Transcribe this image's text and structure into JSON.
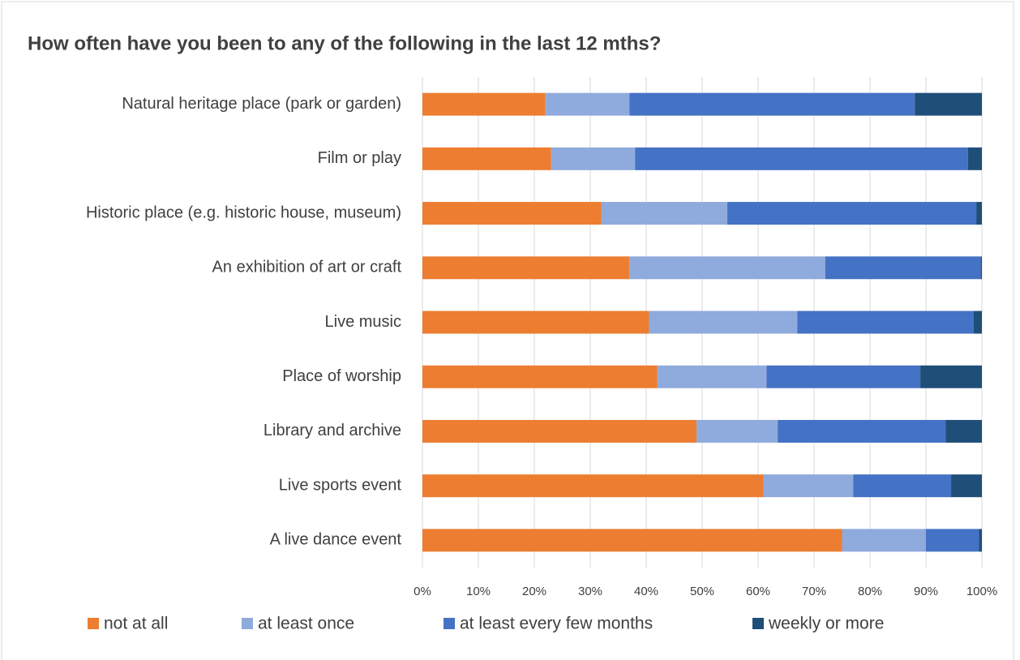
{
  "chart_data": {
    "type": "stacked-bar-horizontal",
    "title": "How often have you been to any of the following in the last 12 mths?",
    "categories": [
      "Natural heritage place (park or garden)",
      "Film or play",
      "Historic place (e.g. historic house, museum)",
      "An exhibition of art or craft",
      "Live music",
      "Place of worship",
      "Library and archive",
      "Live sports event",
      "A live dance event"
    ],
    "series": [
      {
        "name": "not at all",
        "color": "#ed7d31",
        "values": [
          22,
          23,
          32,
          37,
          40.5,
          42,
          49,
          61,
          75
        ]
      },
      {
        "name": "at least once",
        "color": "#8faadc",
        "values": [
          15,
          15,
          22.5,
          35,
          26.5,
          19.5,
          14.5,
          16,
          15
        ]
      },
      {
        "name": "at least every few months",
        "color": "#4472c4",
        "values": [
          51,
          59.5,
          44.5,
          27.8,
          31.5,
          27.5,
          30,
          17.5,
          9.5
        ]
      },
      {
        "name": "weekly or more",
        "color": "#1f4e79",
        "values": [
          12,
          2.5,
          1,
          0.2,
          1.5,
          11,
          6.5,
          5.5,
          0.5
        ]
      }
    ],
    "xlim": [
      0,
      100
    ],
    "xticks": [
      {
        "value": 0,
        "label": "0%"
      },
      {
        "value": 10,
        "label": "10%"
      },
      {
        "value": 20,
        "label": "20%"
      },
      {
        "value": 30,
        "label": "30%"
      },
      {
        "value": 40,
        "label": "40%"
      },
      {
        "value": 50,
        "label": "50%"
      },
      {
        "value": 60,
        "label": "60%"
      },
      {
        "value": 70,
        "label": "70%"
      },
      {
        "value": 80,
        "label": "80%"
      },
      {
        "value": 90,
        "label": "90%"
      },
      {
        "value": 100,
        "label": "100%"
      }
    ],
    "grid": true,
    "legend": "bottom"
  }
}
